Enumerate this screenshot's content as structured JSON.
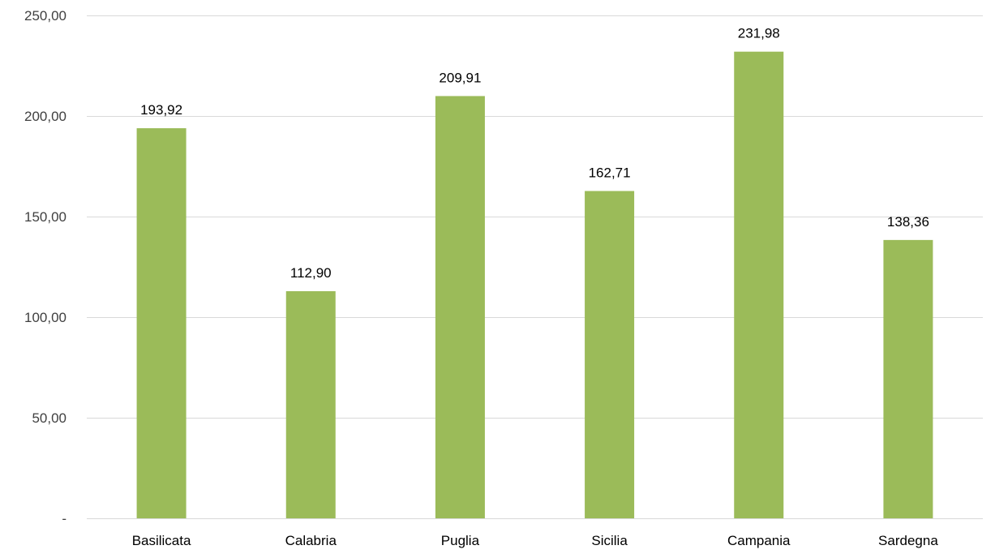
{
  "chart_data": {
    "type": "bar",
    "categories": [
      "Basilicata",
      "Calabria",
      "Puglia",
      "Sicilia",
      "Campania",
      "Sardegna"
    ],
    "values": [
      193.92,
      112.9,
      209.91,
      162.71,
      231.98,
      138.36
    ],
    "data_labels": [
      "193,92",
      "112,90",
      "209,91",
      "162,71",
      "231,98",
      "138,36"
    ],
    "title": "",
    "xlabel": "",
    "ylabel": "",
    "ylim": [
      0,
      250
    ],
    "yticks": [
      0,
      50,
      100,
      150,
      200,
      250
    ],
    "ytick_labels": [
      "-",
      "50,00",
      "100,00",
      "150,00",
      "200,00",
      "250,00"
    ],
    "grid": true,
    "legend": "none",
    "colors": {
      "bar": "#9bbb59",
      "grid": "#d9d9d9"
    }
  }
}
